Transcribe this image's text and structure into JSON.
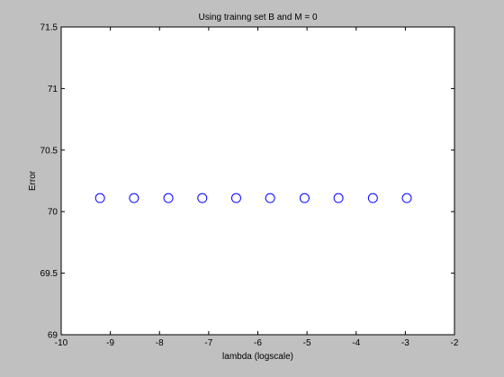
{
  "chart_data": {
    "type": "scatter",
    "title": "Using trainng set B and M = 0",
    "xlabel": "lambda (logscale)",
    "ylabel": "Error",
    "xlim": [
      -10,
      -2
    ],
    "ylim": [
      69,
      71.5
    ],
    "x_ticks": [
      "-10",
      "-9",
      "-8",
      "-7",
      "-6",
      "-5",
      "-4",
      "-3",
      "-2"
    ],
    "y_ticks": [
      "69",
      "69.5",
      "70",
      "70.5",
      "71",
      "71.5"
    ],
    "grid": false,
    "marker": "circle",
    "marker_color": "#0000ff",
    "points": [
      {
        "x": -9.21,
        "y": 70.11
      },
      {
        "x": -8.52,
        "y": 70.11
      },
      {
        "x": -7.82,
        "y": 70.11
      },
      {
        "x": -7.13,
        "y": 70.11
      },
      {
        "x": -6.44,
        "y": 70.11
      },
      {
        "x": -5.75,
        "y": 70.11
      },
      {
        "x": -5.05,
        "y": 70.11
      },
      {
        "x": -4.36,
        "y": 70.11
      },
      {
        "x": -3.66,
        "y": 70.11
      },
      {
        "x": -2.97,
        "y": 70.11
      }
    ]
  }
}
